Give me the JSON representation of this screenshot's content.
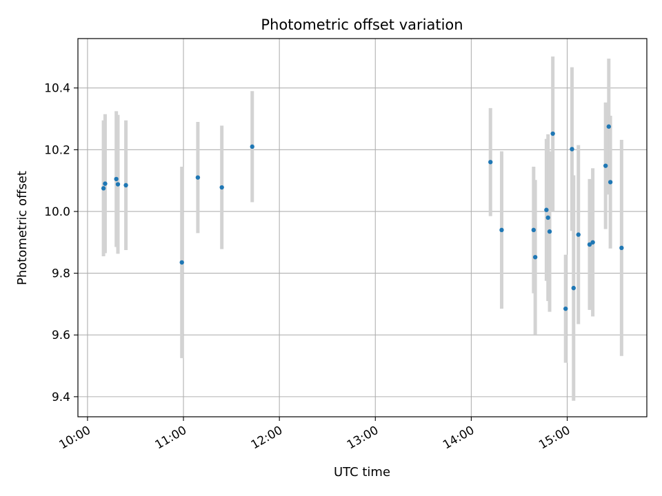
{
  "chart_data": {
    "type": "scatter",
    "title": "Photometric offset variation",
    "xlabel": "UTC time",
    "ylabel": "Photometric offset",
    "x_ticks": [
      "10:00",
      "11:00",
      "12:00",
      "13:00",
      "14:00",
      "15:00"
    ],
    "y_ticks": [
      "9.4",
      "9.6",
      "9.8",
      "10.0",
      "10.2",
      "10.4"
    ],
    "x_tick_values_hours": [
      10,
      11,
      12,
      13,
      14,
      15
    ],
    "y_tick_values": [
      9.4,
      9.6,
      9.8,
      10.0,
      10.2,
      10.4
    ],
    "xlim_hours": [
      9.9,
      15.83
    ],
    "ylim": [
      9.335,
      10.56
    ],
    "grid": true,
    "colors": {
      "points": "#1f77b4",
      "errorbars": "#d3d3d3",
      "grid": "#b0b0b0"
    },
    "points": [
      {
        "x": "10:10",
        "y": 10.075,
        "err": 0.22
      },
      {
        "x": "10:11",
        "y": 10.09,
        "err": 0.225
      },
      {
        "x": "10:18",
        "y": 10.105,
        "err": 0.22
      },
      {
        "x": "10:19",
        "y": 10.088,
        "err": 0.225
      },
      {
        "x": "10:24",
        "y": 10.085,
        "err": 0.21
      },
      {
        "x": "10:59",
        "y": 9.835,
        "err": 0.31
      },
      {
        "x": "11:09",
        "y": 10.11,
        "err": 0.18
      },
      {
        "x": "11:24",
        "y": 10.078,
        "err": 0.2
      },
      {
        "x": "11:43",
        "y": 10.21,
        "err": 0.18
      },
      {
        "x": "14:12",
        "y": 10.16,
        "err": 0.175
      },
      {
        "x": "14:19",
        "y": 9.94,
        "err": 0.255
      },
      {
        "x": "14:39",
        "y": 9.94,
        "err": 0.205
      },
      {
        "x": "14:40",
        "y": 9.852,
        "err": 0.25
      },
      {
        "x": "14:47",
        "y": 10.005,
        "err": 0.23
      },
      {
        "x": "14:48",
        "y": 9.98,
        "err": 0.27
      },
      {
        "x": "14:49",
        "y": 9.935,
        "err": 0.26
      },
      {
        "x": "14:51",
        "y": 10.252,
        "err": 0.25
      },
      {
        "x": "14:59",
        "y": 9.685,
        "err": 0.175
      },
      {
        "x": "15:03",
        "y": 10.202,
        "err": 0.265
      },
      {
        "x": "15:04",
        "y": 9.752,
        "err": 0.365
      },
      {
        "x": "15:07",
        "y": 9.925,
        "err": 0.29
      },
      {
        "x": "15:14",
        "y": 9.893,
        "err": 0.212
      },
      {
        "x": "15:16",
        "y": 9.9,
        "err": 0.24
      },
      {
        "x": "15:24",
        "y": 10.148,
        "err": 0.205
      },
      {
        "x": "15:26",
        "y": 10.275,
        "err": 0.22
      },
      {
        "x": "15:27",
        "y": 10.095,
        "err": 0.215
      },
      {
        "x": "15:34",
        "y": 9.882,
        "err": 0.35
      }
    ]
  }
}
